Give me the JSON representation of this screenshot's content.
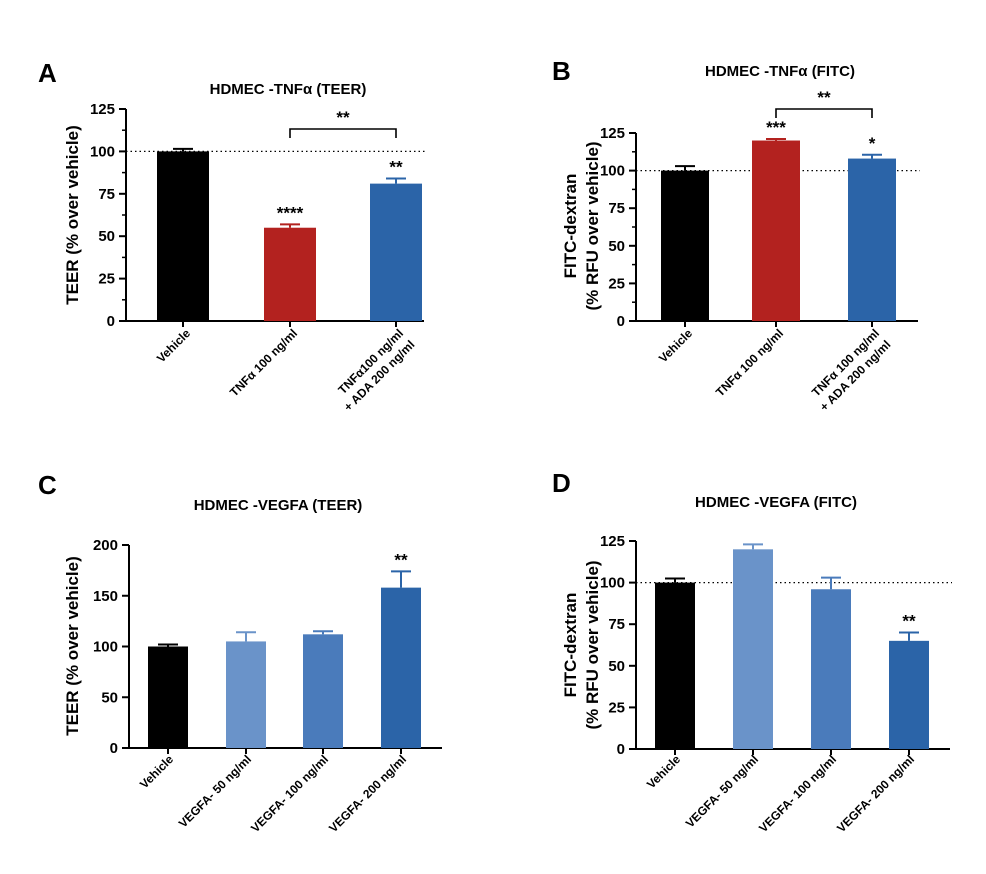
{
  "chart_data": [
    {
      "panel": "A",
      "type": "bar",
      "title": "HDMEC -TNFα (TEER)",
      "ylabel": "TEER (% over vehicle)",
      "xlabel": "",
      "ylim": [
        0,
        125
      ],
      "yticks": [
        0,
        25,
        50,
        75,
        100,
        125
      ],
      "minor_ticks": true,
      "reference_line": 100,
      "grid": false,
      "categories": [
        [
          "Vehicle"
        ],
        [
          "TNFα 100 ng/ml"
        ],
        [
          "TNFα100 ng/ml",
          "+ ADA 200 ng/ml"
        ]
      ],
      "values": [
        100,
        55,
        81
      ],
      "errors": [
        1.5,
        2,
        3
      ],
      "colors": [
        "#000000",
        "#b3221f",
        "#2b64a8"
      ],
      "significance": [
        "",
        "****",
        "**"
      ],
      "brackets": [
        {
          "from": 1,
          "to": 2,
          "label": "**"
        }
      ]
    },
    {
      "panel": "B",
      "type": "bar",
      "title": "HDMEC -TNFα (FITC)",
      "ylabel": [
        "FITC-dextran",
        "(% RFU over vehicle)"
      ],
      "xlabel": "",
      "ylim": [
        0,
        125
      ],
      "yticks": [
        0,
        25,
        50,
        75,
        100,
        125
      ],
      "minor_ticks": true,
      "reference_line": 100,
      "grid": false,
      "categories": [
        [
          "Vehicle"
        ],
        [
          "TNFα 100 ng/ml"
        ],
        [
          "TNFα 100 ng/ml",
          "+ ADA 200 ng/ml"
        ]
      ],
      "values": [
        100,
        120,
        108
      ],
      "errors": [
        3,
        1,
        2.5
      ],
      "colors": [
        "#000000",
        "#b3221f",
        "#2b64a8"
      ],
      "significance": [
        "",
        "***",
        "*"
      ],
      "brackets": [
        {
          "from": 1,
          "to": 2,
          "label": "**"
        }
      ]
    },
    {
      "panel": "C",
      "type": "bar",
      "title": "HDMEC -VEGFA (TEER)",
      "ylabel": "TEER (% over vehicle)",
      "xlabel": "",
      "ylim": [
        0,
        200
      ],
      "yticks": [
        0,
        50,
        100,
        150,
        200
      ],
      "minor_ticks": false,
      "reference_line": null,
      "grid": false,
      "categories": [
        [
          "Vehicle"
        ],
        [
          "VEGFA- 50 ng/ml"
        ],
        [
          "VEGFA- 100 ng/ml"
        ],
        [
          "VEGFA- 200 ng/ml"
        ]
      ],
      "values": [
        100,
        105,
        112,
        158
      ],
      "errors": [
        2,
        9,
        3,
        16
      ],
      "colors": [
        "#000000",
        "#6a93c9",
        "#4a7bbb",
        "#2b64a8"
      ],
      "significance": [
        "",
        "",
        "",
        "**"
      ],
      "brackets": []
    },
    {
      "panel": "D",
      "type": "bar",
      "title": "HDMEC -VEGFA (FITC)",
      "ylabel": [
        "FITC-dextran",
        "(% RFU over vehicle)"
      ],
      "xlabel": "",
      "ylim": [
        0,
        125
      ],
      "yticks": [
        0,
        25,
        50,
        75,
        100,
        125
      ],
      "minor_ticks": false,
      "reference_line": 100,
      "grid": false,
      "categories": [
        [
          "Vehicle"
        ],
        [
          "VEGFA- 50 ng/ml"
        ],
        [
          "VEGFA- 100 ng/ml"
        ],
        [
          "VEGFA- 200 ng/ml"
        ]
      ],
      "values": [
        100,
        120,
        96,
        65
      ],
      "errors": [
        2.5,
        3,
        7,
        5
      ],
      "colors": [
        "#000000",
        "#6a93c9",
        "#4a7bbb",
        "#2b64a8"
      ],
      "significance": [
        "",
        "",
        "",
        "**"
      ],
      "brackets": []
    }
  ]
}
